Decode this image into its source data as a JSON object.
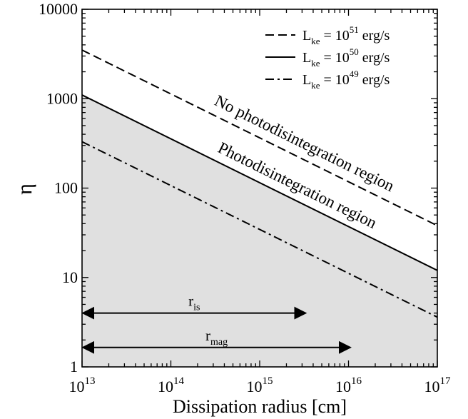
{
  "chart_data": {
    "type": "line",
    "xlabel": "Dissipation radius [cm]",
    "ylabel": "η",
    "x_scale": "log",
    "y_scale": "log",
    "xlim": [
      10000000000000.0,
      1e+17
    ],
    "ylim": [
      1,
      10000
    ],
    "x_tick_labels": [
      {
        "value": 10000000000000.0,
        "base": "10",
        "exp": "13"
      },
      {
        "value": 100000000000000.0,
        "base": "10",
        "exp": "14"
      },
      {
        "value": 1000000000000000.0,
        "base": "10",
        "exp": "15"
      },
      {
        "value": 1e+16,
        "base": "10",
        "exp": "16"
      },
      {
        "value": 1e+17,
        "base": "10",
        "exp": "17"
      }
    ],
    "y_tick_labels": [
      {
        "value": 1,
        "label": "1"
      },
      {
        "value": 10,
        "label": "10"
      },
      {
        "value": 100,
        "label": "100"
      },
      {
        "value": 1000,
        "label": "1000"
      },
      {
        "value": 10000,
        "label": "10000"
      }
    ],
    "series": [
      {
        "name": "L_ke = 10^51 erg/s",
        "legend_exp": "51",
        "style": "dashed",
        "x": [
          10000000000000.0,
          1e+17
        ],
        "y": [
          3500,
          38
        ]
      },
      {
        "name": "L_ke = 10^50 erg/s",
        "legend_exp": "50",
        "style": "solid",
        "x": [
          10000000000000.0,
          1e+17
        ],
        "y": [
          1100,
          12
        ]
      },
      {
        "name": "L_ke = 10^49 erg/s",
        "legend_exp": "49",
        "style": "dashdot",
        "x": [
          10000000000000.0,
          1e+17
        ],
        "y": [
          330,
          3.6
        ]
      }
    ],
    "legend": {
      "position": "top-right",
      "main": "L",
      "sub": "ke",
      "mid": " = 10",
      "unit": " erg/s"
    },
    "shaded_region": {
      "below_series": "L_ke = 10^50 erg/s",
      "color": "#e0e0e0"
    },
    "annotations": [
      {
        "text": "No photodisintegration region",
        "x": 3000000000000000.0,
        "y": 280
      },
      {
        "text": "Photodisintegration region",
        "x": 2500000000000000.0,
        "y": 95
      }
    ],
    "ranges": [
      {
        "label_main": "r",
        "label_sub": "is",
        "x_start": 10000000000000.0,
        "x_end": 3300000000000000.0,
        "y": 4
      },
      {
        "label_main": "r",
        "label_sub": "mag",
        "x_start": 10000000000000.0,
        "x_end": 1.05e+16,
        "y": 1.65
      }
    ],
    "grid": false
  }
}
